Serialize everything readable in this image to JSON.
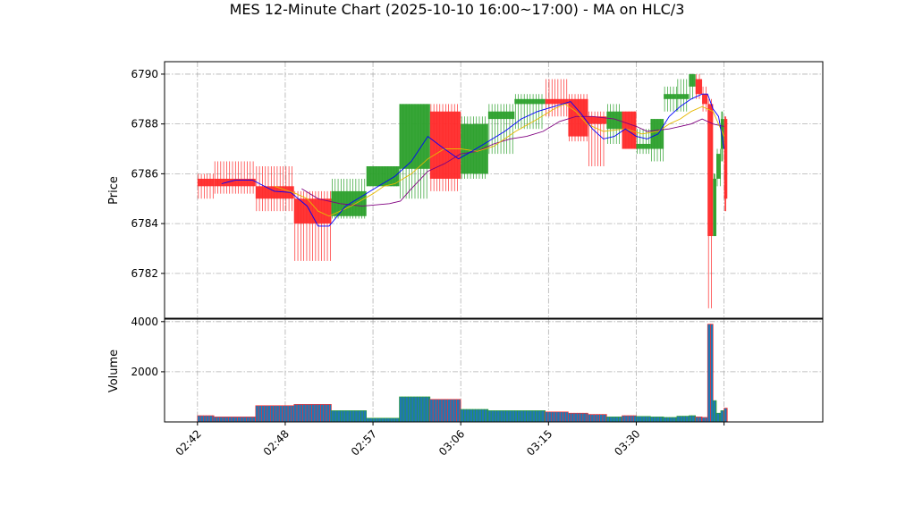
{
  "chart_data": {
    "type": "candlestick",
    "title": "MES 12-Minute Chart (2025-10-10 16:00~17:00) - MA on HLC/3",
    "ylabel_price": "Price",
    "ylabel_volume": "Volume",
    "x_range_minutes": [
      -3,
      57
    ],
    "price_ylim": [
      6780.2,
      6790.5
    ],
    "volume_ylim": [
      0,
      4100
    ],
    "x_ticks": [
      {
        "label": "02:42",
        "min": 0
      },
      {
        "label": "02:48",
        "min": 8
      },
      {
        "label": "02:57",
        "min": 16
      },
      {
        "label": "03:06",
        "min": 24
      },
      {
        "label": "03:15",
        "min": 32
      },
      {
        "label": "03:30",
        "min": 40
      },
      {
        "label": "",
        "min": 48
      }
    ],
    "price_ticks": [
      6782,
      6784,
      6786,
      6788,
      6790
    ],
    "volume_ticks": [
      2000,
      4000
    ],
    "grid": true,
    "colors": {
      "up": "#2ca02c",
      "down": "#ff2a2a",
      "ma_fast": "#0000ff",
      "ma_mid": "#e6b800",
      "ma_slow": "#800080",
      "volume_fill": "#1f77b4"
    },
    "candles": [
      {
        "t0": 0.0,
        "t1": 1.5,
        "o": 6785.8,
        "h": 6786.0,
        "l": 6785.0,
        "c": 6785.5,
        "v": 250
      },
      {
        "t0": 1.5,
        "t1": 5.3,
        "o": 6785.8,
        "h": 6786.5,
        "l": 6785.2,
        "c": 6785.5,
        "v": 200
      },
      {
        "t0": 5.3,
        "t1": 8.8,
        "o": 6785.5,
        "h": 6786.3,
        "l": 6784.5,
        "c": 6785.0,
        "v": 650
      },
      {
        "t0": 8.8,
        "t1": 12.2,
        "o": 6785.0,
        "h": 6785.3,
        "l": 6782.5,
        "c": 6784.0,
        "v": 700
      },
      {
        "t0": 12.2,
        "t1": 15.4,
        "o": 6784.3,
        "h": 6785.8,
        "l": 6784.2,
        "c": 6785.3,
        "v": 450
      },
      {
        "t0": 15.4,
        "t1": 18.4,
        "o": 6785.5,
        "h": 6786.3,
        "l": 6785.5,
        "c": 6786.3,
        "v": 150
      },
      {
        "t0": 18.4,
        "t1": 21.2,
        "o": 6786.2,
        "h": 6788.8,
        "l": 6785.0,
        "c": 6788.8,
        "v": 1000
      },
      {
        "t0": 21.2,
        "t1": 24.0,
        "o": 6788.5,
        "h": 6788.8,
        "l": 6785.3,
        "c": 6785.8,
        "v": 900
      },
      {
        "t0": 24.0,
        "t1": 26.5,
        "o": 6786.0,
        "h": 6788.3,
        "l": 6785.8,
        "c": 6788.0,
        "v": 500
      },
      {
        "t0": 26.5,
        "t1": 28.9,
        "o": 6788.2,
        "h": 6788.8,
        "l": 6786.8,
        "c": 6788.5,
        "v": 450
      },
      {
        "t0": 28.9,
        "t1": 31.7,
        "o": 6788.8,
        "h": 6789.2,
        "l": 6787.8,
        "c": 6789.0,
        "v": 450
      },
      {
        "t0": 31.7,
        "t1": 33.8,
        "o": 6789.0,
        "h": 6789.8,
        "l": 6788.3,
        "c": 6788.8,
        "v": 400
      },
      {
        "t0": 33.8,
        "t1": 35.6,
        "o": 6789.0,
        "h": 6789.2,
        "l": 6787.3,
        "c": 6787.5,
        "v": 350
      },
      {
        "t0": 35.6,
        "t1": 37.3,
        "o": 6788.3,
        "h": 6788.5,
        "l": 6786.3,
        "c": 6788.0,
        "v": 300
      },
      {
        "t0": 37.3,
        "t1": 38.7,
        "o": 6787.8,
        "h": 6788.8,
        "l": 6787.2,
        "c": 6788.5,
        "v": 200
      },
      {
        "t0": 38.7,
        "t1": 40.0,
        "o": 6788.5,
        "h": 6788.5,
        "l": 6787.0,
        "c": 6787.0,
        "v": 250
      },
      {
        "t0": 40.0,
        "t1": 41.3,
        "o": 6787.0,
        "h": 6787.8,
        "l": 6786.8,
        "c": 6787.2,
        "v": 220
      },
      {
        "t0": 41.3,
        "t1": 42.5,
        "o": 6787.0,
        "h": 6788.2,
        "l": 6786.5,
        "c": 6788.2,
        "v": 200
      },
      {
        "t0": 42.5,
        "t1": 43.7,
        "o": 6789.0,
        "h": 6789.5,
        "l": 6788.5,
        "c": 6789.2,
        "v": 180
      },
      {
        "t0": 43.7,
        "t1": 44.8,
        "o": 6789.0,
        "h": 6789.8,
        "l": 6788.5,
        "c": 6789.2,
        "v": 230
      },
      {
        "t0": 44.8,
        "t1": 45.4,
        "o": 6789.5,
        "h": 6790.0,
        "l": 6789.0,
        "c": 6790.0,
        "v": 250
      },
      {
        "t0": 45.4,
        "t1": 46.0,
        "o": 6789.8,
        "h": 6790.0,
        "l": 6789.0,
        "c": 6789.2,
        "v": 200
      },
      {
        "t0": 46.0,
        "t1": 46.5,
        "o": 6789.2,
        "h": 6789.5,
        "l": 6788.5,
        "c": 6788.8,
        "v": 180
      },
      {
        "t0": 46.5,
        "t1": 47.0,
        "o": 6788.8,
        "h": 6789.0,
        "l": 6780.6,
        "c": 6783.5,
        "v": 3900
      },
      {
        "t0": 47.0,
        "t1": 47.3,
        "o": 6783.5,
        "h": 6786.0,
        "l": 6783.5,
        "c": 6785.8,
        "v": 850
      },
      {
        "t0": 47.3,
        "t1": 47.7,
        "o": 6785.8,
        "h": 6787.0,
        "l": 6785.5,
        "c": 6786.8,
        "v": 350
      },
      {
        "t0": 47.7,
        "t1": 48.0,
        "o": 6787.0,
        "h": 6788.5,
        "l": 6786.5,
        "c": 6788.2,
        "v": 450
      },
      {
        "t0": 48.0,
        "t1": 48.3,
        "o": 6788.2,
        "h": 6788.3,
        "l": 6784.5,
        "c": 6785.0,
        "v": 550
      }
    ],
    "ma_fast": [
      [
        2.2,
        6785.6
      ],
      [
        3.5,
        6785.75
      ],
      [
        5.0,
        6785.75
      ],
      [
        7.0,
        6785.3
      ],
      [
        8.5,
        6785.25
      ],
      [
        10.0,
        6784.7
      ],
      [
        11.0,
        6783.9
      ],
      [
        12.0,
        6783.9
      ],
      [
        13.5,
        6784.7
      ],
      [
        15.0,
        6785.1
      ],
      [
        16.5,
        6785.5
      ],
      [
        18.0,
        6785.9
      ],
      [
        19.5,
        6786.5
      ],
      [
        21.0,
        6787.5
      ],
      [
        22.5,
        6787.0
      ],
      [
        23.8,
        6786.6
      ],
      [
        25.0,
        6786.9
      ],
      [
        26.5,
        6787.3
      ],
      [
        28.0,
        6787.7
      ],
      [
        29.5,
        6788.2
      ],
      [
        31.0,
        6788.5
      ],
      [
        32.5,
        6788.7
      ],
      [
        34.0,
        6788.9
      ],
      [
        35.0,
        6788.4
      ],
      [
        36.0,
        6787.8
      ],
      [
        37.0,
        6787.4
      ],
      [
        38.0,
        6787.5
      ],
      [
        39.0,
        6787.8
      ],
      [
        40.0,
        6787.5
      ],
      [
        41.0,
        6787.4
      ],
      [
        42.0,
        6787.6
      ],
      [
        43.0,
        6788.3
      ],
      [
        44.0,
        6788.7
      ],
      [
        45.0,
        6789.0
      ],
      [
        46.0,
        6789.2
      ],
      [
        46.5,
        6789.2
      ],
      [
        47.0,
        6788.6
      ],
      [
        47.5,
        6788.3
      ],
      [
        48.0,
        6787.0
      ]
    ],
    "ma_mid": [
      [
        7.0,
        6785.5
      ],
      [
        9.0,
        6785.2
      ],
      [
        10.0,
        6785.0
      ],
      [
        11.0,
        6784.5
      ],
      [
        12.0,
        6784.3
      ],
      [
        14.0,
        6784.7
      ],
      [
        16.0,
        6785.2
      ],
      [
        17.0,
        6785.5
      ],
      [
        18.0,
        6785.6
      ],
      [
        19.5,
        6786.0
      ],
      [
        21.0,
        6786.6
      ],
      [
        22.5,
        6787.0
      ],
      [
        24.0,
        6787.0
      ],
      [
        25.5,
        6786.9
      ],
      [
        27.0,
        6787.1
      ],
      [
        29.0,
        6787.7
      ],
      [
        31.0,
        6788.2
      ],
      [
        32.5,
        6788.6
      ],
      [
        33.5,
        6788.8
      ],
      [
        34.5,
        6788.5
      ],
      [
        35.5,
        6788.0
      ],
      [
        37.0,
        6787.7
      ],
      [
        39.0,
        6787.8
      ],
      [
        40.5,
        6787.6
      ],
      [
        42.0,
        6787.7
      ],
      [
        43.0,
        6788.0
      ],
      [
        44.0,
        6788.2
      ],
      [
        45.0,
        6788.5
      ],
      [
        46.0,
        6788.7
      ],
      [
        47.0,
        6788.5
      ],
      [
        48.0,
        6787.5
      ]
    ],
    "ma_slow": [
      [
        9.5,
        6785.4
      ],
      [
        11.0,
        6785.0
      ],
      [
        13.0,
        6784.8
      ],
      [
        15.0,
        6784.7
      ],
      [
        17.5,
        6784.8
      ],
      [
        18.5,
        6784.9
      ],
      [
        19.5,
        6785.4
      ],
      [
        21.0,
        6786.1
      ],
      [
        22.5,
        6786.4
      ],
      [
        24.0,
        6786.8
      ],
      [
        25.5,
        6786.9
      ],
      [
        27.0,
        6787.2
      ],
      [
        28.5,
        6787.4
      ],
      [
        30.0,
        6787.5
      ],
      [
        31.5,
        6787.7
      ],
      [
        33.0,
        6788.1
      ],
      [
        34.5,
        6788.3
      ],
      [
        36.0,
        6788.3
      ],
      [
        38.0,
        6788.2
      ],
      [
        40.0,
        6787.9
      ],
      [
        41.0,
        6787.7
      ],
      [
        43.0,
        6787.8
      ],
      [
        45.0,
        6788.0
      ],
      [
        46.0,
        6788.2
      ],
      [
        47.0,
        6788.0
      ],
      [
        48.0,
        6787.9
      ]
    ]
  }
}
